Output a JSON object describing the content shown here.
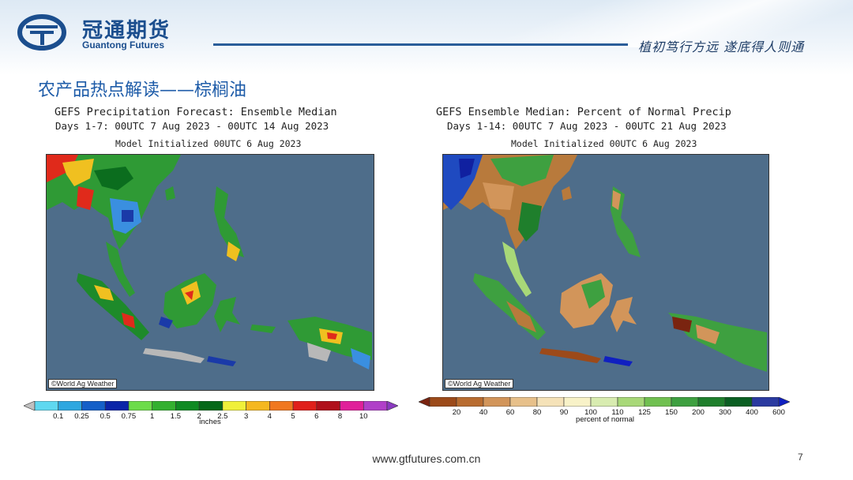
{
  "header": {
    "logo_cn": "冠通期货",
    "logo_en": "Guantong Futures",
    "slogan": "植初笃行方远  遂底得人则通"
  },
  "section_title": "农产品热点解读——棕榈油",
  "panel_left": {
    "title1": "GEFS Precipitation Forecast: Ensemble Median",
    "title2": "Days 1-7: 00UTC 7 Aug 2023 - 00UTC 14 Aug 2023",
    "title3": "Model Initialized 00UTC 6 Aug 2023",
    "credit": "©World Ag Weather",
    "unit": "inches",
    "scale_labels": [
      "0.1",
      "0.25",
      "0.5",
      "0.75",
      "1",
      "1.5",
      "2",
      "2.5",
      "3",
      "4",
      "5",
      "6",
      "8",
      "10"
    ],
    "scale_colors": [
      "#c0c0c0",
      "#5fd8f0",
      "#2ea7e0",
      "#1460c8",
      "#0b25a8",
      "#6cdc4a",
      "#33b030",
      "#0f8a23",
      "#056818",
      "#f0f03a",
      "#f5b820",
      "#f07820",
      "#e0201b",
      "#b0101b",
      "#e0209a",
      "#b040c8",
      "#8a3ac0"
    ]
  },
  "panel_right": {
    "title1": "GEFS Ensemble Median: Percent of Normal Precip",
    "title2": "Days 1-14: 00UTC 7 Aug 2023 - 00UTC 21 Aug 2023",
    "title3": "Model Initialized 00UTC 6 Aug 2023",
    "credit": "©World Ag Weather",
    "unit": "percent of normal",
    "scale_labels": [
      "20",
      "40",
      "60",
      "80",
      "90",
      "100",
      "110",
      "125",
      "150",
      "200",
      "300",
      "400",
      "600"
    ],
    "scale_colors": [
      "#7a2410",
      "#9c4a1a",
      "#b86c30",
      "#d2955a",
      "#e7c08a",
      "#f5e2b8",
      "#f8f2c8",
      "#d8ecb0",
      "#a8d878",
      "#70c050",
      "#3ea040",
      "#1f7f2c",
      "#0a5f22",
      "#2a3aa0",
      "#1020c0"
    ]
  },
  "footer": {
    "url": "www.gtfutures.com.cn",
    "page": "7"
  }
}
